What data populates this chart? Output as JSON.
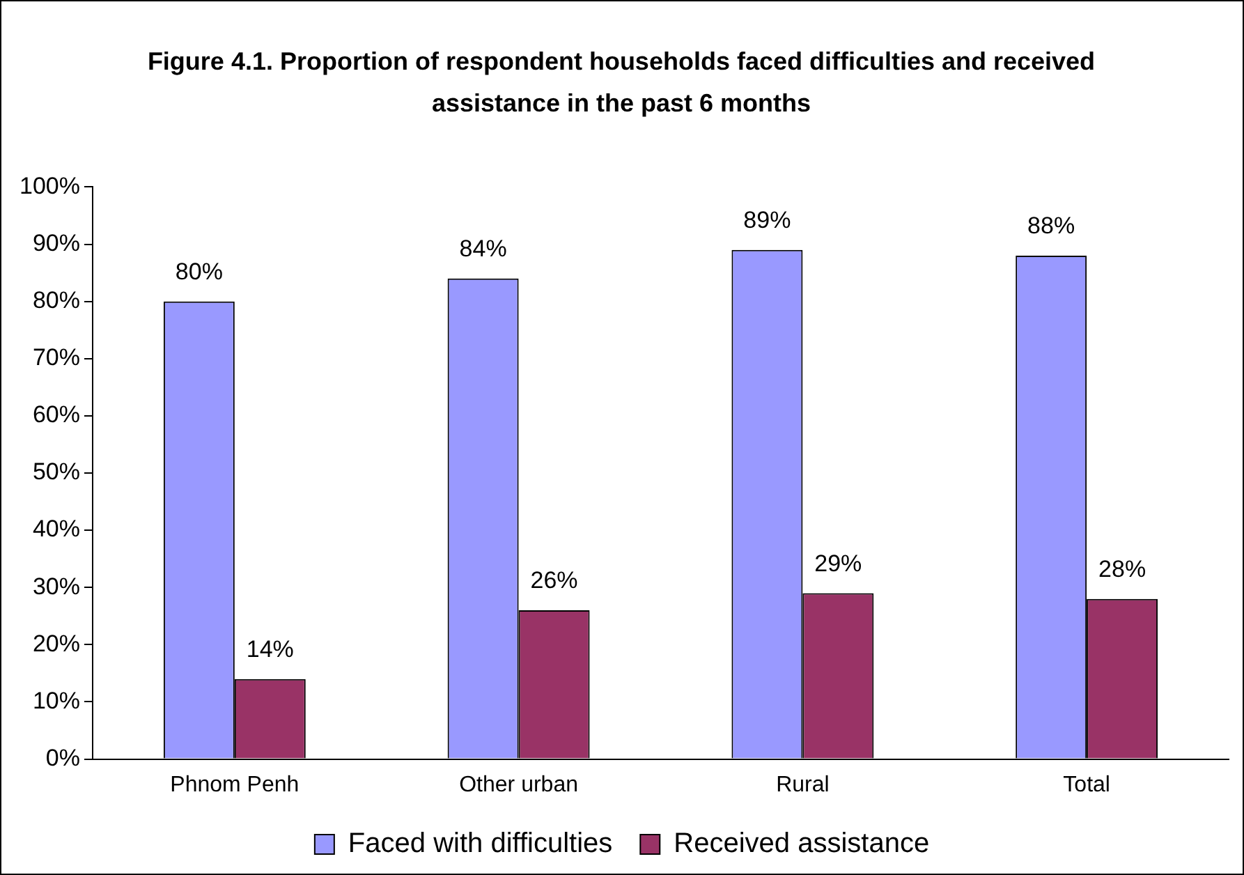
{
  "chart_data": {
    "type": "bar",
    "title": "Figure 4.1. Proportion of respondent households faced difficulties and received assistance in the past 6 months",
    "categories": [
      "Phnom Penh",
      "Other urban",
      "Rural",
      "Total"
    ],
    "series": [
      {
        "name": "Faced with difficulties",
        "color": "#9999ff",
        "values": [
          80,
          84,
          89,
          88
        ],
        "value_labels": [
          "80%",
          "84%",
          "89%",
          "88%"
        ]
      },
      {
        "name": "Received assistance",
        "color": "#993366",
        "values": [
          14,
          26,
          29,
          28
        ],
        "value_labels": [
          "14%",
          "26%",
          "29%",
          "28%"
        ]
      }
    ],
    "ylim": [
      0,
      100
    ],
    "yticks": [
      {
        "value": 0,
        "label": "0%"
      },
      {
        "value": 10,
        "label": "10%"
      },
      {
        "value": 20,
        "label": "20%"
      },
      {
        "value": 30,
        "label": "30%"
      },
      {
        "value": 40,
        "label": "40%"
      },
      {
        "value": 50,
        "label": "50%"
      },
      {
        "value": 60,
        "label": "60%"
      },
      {
        "value": 70,
        "label": "70%"
      },
      {
        "value": 80,
        "label": "80%"
      },
      {
        "value": 90,
        "label": "90%"
      },
      {
        "value": 100,
        "label": "100%"
      }
    ],
    "grid": false,
    "legend": "bottom"
  }
}
